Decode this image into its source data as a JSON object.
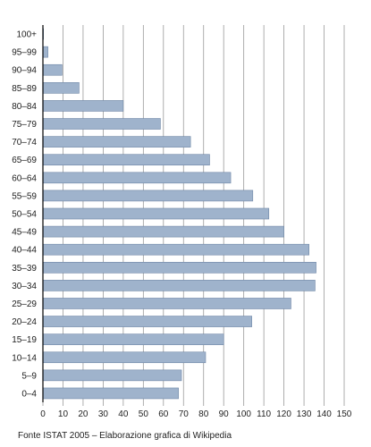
{
  "chart_data": {
    "type": "bar",
    "orientation": "horizontal",
    "categories": [
      "100+",
      "95–99",
      "90–94",
      "85–89",
      "80–84",
      "75–79",
      "70–74",
      "65–69",
      "60–64",
      "55–59",
      "50–54",
      "45–49",
      "40–44",
      "35–39",
      "30–34",
      "25–29",
      "20–24",
      "15–19",
      "10–14",
      "5–9",
      "0–4"
    ],
    "values": [
      0.3,
      2.5,
      9.5,
      18,
      40,
      58.5,
      73.5,
      83,
      93.5,
      104.5,
      112.5,
      120,
      132.5,
      136,
      135.5,
      123.5,
      104,
      90,
      81,
      69,
      67.5
    ],
    "xlim": [
      0,
      150
    ],
    "xticks": [
      0,
      10,
      20,
      30,
      40,
      50,
      60,
      70,
      80,
      90,
      100,
      110,
      120,
      130,
      140,
      150
    ],
    "grid": "vertical",
    "bar_color": "#9fb3cc",
    "bar_edge_color": "#6e86a6"
  },
  "footer": {
    "source": "Fonte ISTAT 2005 – Elaborazione grafica di Wikipedia"
  }
}
